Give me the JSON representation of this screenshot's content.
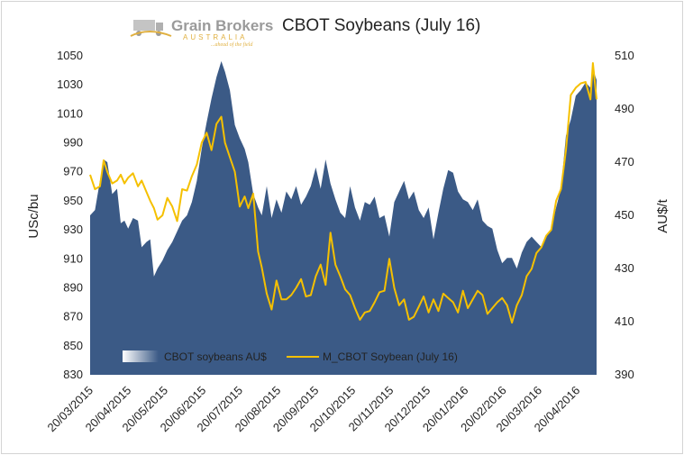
{
  "chart_data": {
    "type": "area+line",
    "title": "CBOT Soybeans (July 16)",
    "ylabel_left": "USc/bu",
    "ylabel_right": "AU$/t",
    "ylim_left": [
      830,
      1050
    ],
    "ylim_right": [
      390,
      510
    ],
    "yticks_left": [
      830,
      850,
      870,
      890,
      910,
      930,
      950,
      970,
      990,
      1010,
      1030,
      1050
    ],
    "yticks_right": [
      390,
      410,
      430,
      450,
      470,
      490,
      510
    ],
    "xticks": [
      "20/03/2015",
      "20/04/2015",
      "20/05/2015",
      "20/06/2015",
      "20/07/2015",
      "20/08/2015",
      "20/09/2015",
      "20/10/2015",
      "20/11/2015",
      "20/12/2015",
      "20/01/2016",
      "20/02/2016",
      "20/03/2016",
      "20/04/2016"
    ],
    "x_range": [
      "2015-03-20",
      "2016-05-06"
    ],
    "legend_position": "bottom-left",
    "logo": {
      "name": "Grain Brokers",
      "sub": "AUSTRALIA",
      "tagline": "...ahead of the field"
    },
    "series": [
      {
        "name": "CBOT soybeans AU$",
        "kind": "area",
        "axis": "right",
        "color": "#3b5a86",
        "points": [
          [
            "2015-03-20",
            450
          ],
          [
            "2015-03-24",
            452
          ],
          [
            "2015-03-28",
            463
          ],
          [
            "2015-03-31",
            471
          ],
          [
            "2015-04-03",
            470
          ],
          [
            "2015-04-07",
            458
          ],
          [
            "2015-04-11",
            460
          ],
          [
            "2015-04-14",
            447
          ],
          [
            "2015-04-17",
            448
          ],
          [
            "2015-04-20",
            445
          ],
          [
            "2015-04-24",
            449
          ],
          [
            "2015-04-28",
            448
          ],
          [
            "2015-05-01",
            438
          ],
          [
            "2015-05-05",
            440
          ],
          [
            "2015-05-08",
            441
          ],
          [
            "2015-05-11",
            427
          ],
          [
            "2015-05-14",
            430
          ],
          [
            "2015-05-18",
            433
          ],
          [
            "2015-05-22",
            437
          ],
          [
            "2015-05-26",
            440
          ],
          [
            "2015-05-30",
            444
          ],
          [
            "2015-06-03",
            448
          ],
          [
            "2015-06-07",
            450
          ],
          [
            "2015-06-11",
            455
          ],
          [
            "2015-06-15",
            463
          ],
          [
            "2015-06-19",
            475
          ],
          [
            "2015-06-23",
            485
          ],
          [
            "2015-06-27",
            494
          ],
          [
            "2015-07-01",
            502
          ],
          [
            "2015-07-05",
            508
          ],
          [
            "2015-07-08",
            504
          ],
          [
            "2015-07-12",
            497
          ],
          [
            "2015-07-16",
            484
          ],
          [
            "2015-07-20",
            479
          ],
          [
            "2015-07-24",
            475
          ],
          [
            "2015-07-27",
            470
          ],
          [
            "2015-07-31",
            458
          ],
          [
            "2015-08-04",
            453
          ],
          [
            "2015-08-07",
            450
          ],
          [
            "2015-08-11",
            461
          ],
          [
            "2015-08-15",
            449
          ],
          [
            "2015-08-19",
            456
          ],
          [
            "2015-08-23",
            451
          ],
          [
            "2015-08-27",
            459
          ],
          [
            "2015-08-31",
            456
          ],
          [
            "2015-09-04",
            461
          ],
          [
            "2015-09-08",
            454
          ],
          [
            "2015-09-12",
            457
          ],
          [
            "2015-09-16",
            461
          ],
          [
            "2015-09-20",
            468
          ],
          [
            "2015-09-24",
            460
          ],
          [
            "2015-09-28",
            471
          ],
          [
            "2015-10-02",
            462
          ],
          [
            "2015-10-06",
            456
          ],
          [
            "2015-10-10",
            451
          ],
          [
            "2015-10-14",
            449
          ],
          [
            "2015-10-18",
            461
          ],
          [
            "2015-10-22",
            453
          ],
          [
            "2015-10-26",
            448
          ],
          [
            "2015-10-30",
            455
          ],
          [
            "2015-11-03",
            454
          ],
          [
            "2015-11-07",
            457
          ],
          [
            "2015-11-11",
            449
          ],
          [
            "2015-11-15",
            450
          ],
          [
            "2015-11-19",
            442
          ],
          [
            "2015-11-23",
            455
          ],
          [
            "2015-11-27",
            459
          ],
          [
            "2015-12-01",
            463
          ],
          [
            "2015-12-05",
            456
          ],
          [
            "2015-12-09",
            459
          ],
          [
            "2015-12-13",
            452
          ],
          [
            "2015-12-17",
            449
          ],
          [
            "2015-12-21",
            453
          ],
          [
            "2015-12-25",
            441
          ],
          [
            "2015-12-29",
            451
          ],
          [
            "2016-01-02",
            460
          ],
          [
            "2016-01-06",
            467
          ],
          [
            "2016-01-10",
            466
          ],
          [
            "2016-01-14",
            459
          ],
          [
            "2016-01-18",
            456
          ],
          [
            "2016-01-22",
            455
          ],
          [
            "2016-01-26",
            452
          ],
          [
            "2016-01-30",
            456
          ],
          [
            "2016-02-03",
            448
          ],
          [
            "2016-02-07",
            446
          ],
          [
            "2016-02-11",
            445
          ],
          [
            "2016-02-15",
            437
          ],
          [
            "2016-02-19",
            432
          ],
          [
            "2016-02-23",
            434
          ],
          [
            "2016-02-27",
            434
          ],
          [
            "2016-03-02",
            430
          ],
          [
            "2016-03-06",
            436
          ],
          [
            "2016-03-10",
            440
          ],
          [
            "2016-03-14",
            442
          ],
          [
            "2016-03-18",
            440
          ],
          [
            "2016-03-22",
            438
          ],
          [
            "2016-03-26",
            442
          ],
          [
            "2016-03-30",
            445
          ],
          [
            "2016-04-03",
            453
          ],
          [
            "2016-04-07",
            460
          ],
          [
            "2016-04-11",
            480
          ],
          [
            "2016-04-15",
            486
          ],
          [
            "2016-04-19",
            495
          ],
          [
            "2016-04-23",
            497
          ],
          [
            "2016-04-27",
            500
          ],
          [
            "2016-05-01",
            498
          ],
          [
            "2016-05-03",
            505
          ],
          [
            "2016-05-06",
            501
          ]
        ]
      },
      {
        "name": "M_CBOT Soybean (July 16)",
        "kind": "line",
        "axis": "left",
        "color": "#f5c000",
        "points": [
          [
            "2015-03-20",
            968
          ],
          [
            "2015-03-24",
            958
          ],
          [
            "2015-03-28",
            960
          ],
          [
            "2015-03-31",
            978
          ],
          [
            "2015-04-03",
            970
          ],
          [
            "2015-04-07",
            962
          ],
          [
            "2015-04-11",
            964
          ],
          [
            "2015-04-14",
            968
          ],
          [
            "2015-04-17",
            962
          ],
          [
            "2015-04-20",
            966
          ],
          [
            "2015-04-24",
            969
          ],
          [
            "2015-04-28",
            960
          ],
          [
            "2015-05-01",
            964
          ],
          [
            "2015-05-05",
            956
          ],
          [
            "2015-05-08",
            950
          ],
          [
            "2015-05-11",
            945
          ],
          [
            "2015-05-14",
            937
          ],
          [
            "2015-05-18",
            940
          ],
          [
            "2015-05-22",
            952
          ],
          [
            "2015-05-26",
            946
          ],
          [
            "2015-05-30",
            936
          ],
          [
            "2015-06-03",
            958
          ],
          [
            "2015-06-07",
            957
          ],
          [
            "2015-06-11",
            967
          ],
          [
            "2015-06-15",
            975
          ],
          [
            "2015-06-19",
            990
          ],
          [
            "2015-06-23",
            997
          ],
          [
            "2015-06-27",
            985
          ],
          [
            "2015-07-01",
            1003
          ],
          [
            "2015-07-05",
            1008
          ],
          [
            "2015-07-08",
            990
          ],
          [
            "2015-07-12",
            980
          ],
          [
            "2015-07-16",
            970
          ],
          [
            "2015-07-20",
            946
          ],
          [
            "2015-07-24",
            953
          ],
          [
            "2015-07-27",
            945
          ],
          [
            "2015-07-31",
            955
          ],
          [
            "2015-08-04",
            915
          ],
          [
            "2015-08-07",
            904
          ],
          [
            "2015-08-11",
            886
          ],
          [
            "2015-08-15",
            875
          ],
          [
            "2015-08-19",
            895
          ],
          [
            "2015-08-23",
            882
          ],
          [
            "2015-08-27",
            882
          ],
          [
            "2015-08-31",
            885
          ],
          [
            "2015-09-04",
            890
          ],
          [
            "2015-09-08",
            896
          ],
          [
            "2015-09-12",
            884
          ],
          [
            "2015-09-16",
            885
          ],
          [
            "2015-09-20",
            898
          ],
          [
            "2015-09-24",
            906
          ],
          [
            "2015-09-28",
            892
          ],
          [
            "2015-10-02",
            928
          ],
          [
            "2015-10-06",
            906
          ],
          [
            "2015-10-10",
            898
          ],
          [
            "2015-10-14",
            889
          ],
          [
            "2015-10-18",
            885
          ],
          [
            "2015-10-22",
            876
          ],
          [
            "2015-10-26",
            868
          ],
          [
            "2015-10-30",
            873
          ],
          [
            "2015-11-03",
            874
          ],
          [
            "2015-11-07",
            880
          ],
          [
            "2015-11-11",
            887
          ],
          [
            "2015-11-15",
            888
          ],
          [
            "2015-11-19",
            910
          ],
          [
            "2015-11-23",
            890
          ],
          [
            "2015-11-27",
            878
          ],
          [
            "2015-12-01",
            882
          ],
          [
            "2015-12-05",
            868
          ],
          [
            "2015-12-09",
            870
          ],
          [
            "2015-12-13",
            877
          ],
          [
            "2015-12-17",
            884
          ],
          [
            "2015-12-21",
            873
          ],
          [
            "2015-12-25",
            882
          ],
          [
            "2015-12-29",
            874
          ],
          [
            "2016-01-02",
            886
          ],
          [
            "2016-01-06",
            883
          ],
          [
            "2016-01-10",
            880
          ],
          [
            "2016-01-14",
            873
          ],
          [
            "2016-01-18",
            888
          ],
          [
            "2016-01-22",
            876
          ],
          [
            "2016-01-26",
            882
          ],
          [
            "2016-01-30",
            888
          ],
          [
            "2016-02-03",
            885
          ],
          [
            "2016-02-07",
            872
          ],
          [
            "2016-02-11",
            876
          ],
          [
            "2016-02-15",
            880
          ],
          [
            "2016-02-19",
            883
          ],
          [
            "2016-02-23",
            878
          ],
          [
            "2016-02-27",
            866
          ],
          [
            "2016-03-02",
            878
          ],
          [
            "2016-03-06",
            885
          ],
          [
            "2016-03-10",
            898
          ],
          [
            "2016-03-14",
            903
          ],
          [
            "2016-03-18",
            914
          ],
          [
            "2016-03-22",
            918
          ],
          [
            "2016-03-26",
            926
          ],
          [
            "2016-03-30",
            930
          ],
          [
            "2016-04-03",
            950
          ],
          [
            "2016-04-07",
            958
          ],
          [
            "2016-04-11",
            985
          ],
          [
            "2016-04-15",
            1023
          ],
          [
            "2016-04-19",
            1028
          ],
          [
            "2016-04-23",
            1031
          ],
          [
            "2016-04-27",
            1032
          ],
          [
            "2016-05-01",
            1020
          ],
          [
            "2016-05-03",
            1045
          ],
          [
            "2016-05-06",
            1020
          ]
        ]
      }
    ]
  }
}
